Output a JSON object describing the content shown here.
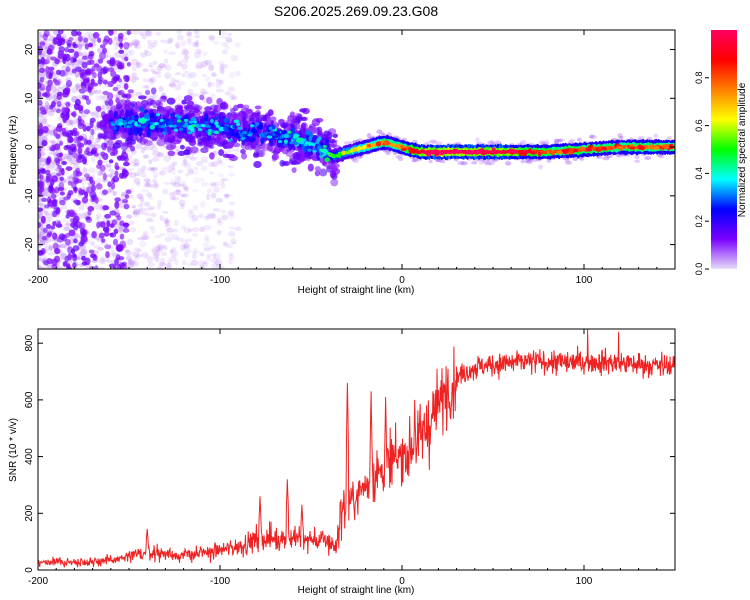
{
  "title": "S206.2025.269.09.23.G08",
  "chart_data": [
    {
      "type": "heatmap",
      "xlabel": "Height of straight line (km)",
      "ylabel": "Frequency (Hz)",
      "xlim": [
        -200,
        150
      ],
      "ylim": [
        -25,
        24
      ],
      "xticks": [
        -200,
        -100,
        0,
        100
      ],
      "xtick_labels": [
        "-200",
        "-100",
        "0",
        "100"
      ],
      "yticks": [
        -20,
        -10,
        0,
        10,
        20
      ],
      "ytick_labels": [
        "-20",
        "-10",
        "0",
        "10",
        "20"
      ],
      "colorbar": {
        "label": "Normalized spectral amplitude",
        "range": [
          0,
          1
        ],
        "ticks": [
          0.0,
          0.2,
          0.4,
          0.6,
          0.8
        ],
        "tick_labels": [
          "0.0",
          "0.2",
          "0.4",
          "0.6",
          "0.8"
        ],
        "colors": [
          "#e6ddf8",
          "#7a00ff",
          "#0000ff",
          "#00ffff",
          "#00ff00",
          "#ffff00",
          "#ff8000",
          "#ff0000",
          "#ff0060"
        ]
      },
      "ridge": {
        "x": [
          -160,
          -140,
          -120,
          -100,
          -80,
          -60,
          -45,
          -38,
          -30,
          -20,
          -10,
          0,
          10,
          20,
          40,
          60,
          80,
          100,
          120,
          150
        ],
        "freq": [
          5,
          5,
          4.5,
          4,
          3,
          2,
          0,
          -2,
          -1,
          0,
          1,
          0,
          -1,
          -1,
          -1,
          -1,
          -1,
          -0.5,
          0,
          0
        ],
        "amplitude": [
          0.2,
          0.25,
          0.25,
          0.25,
          0.2,
          0.25,
          0.3,
          0.4,
          0.5,
          0.6,
          0.7,
          0.7,
          0.9,
          0.95,
          0.95,
          0.9,
          0.75,
          0.75,
          0.75,
          0.7
        ]
      }
    },
    {
      "type": "line",
      "xlabel": "Height of straight line (km)",
      "ylabel": "SNR (10 * v/v)",
      "xlim": [
        -200,
        150
      ],
      "ylim": [
        0,
        850
      ],
      "xticks": [
        -200,
        -100,
        0,
        100
      ],
      "xtick_labels": [
        "-200",
        "-100",
        "0",
        "100"
      ],
      "yticks": [
        0,
        200,
        400,
        600,
        800
      ],
      "ytick_labels": [
        "0",
        "200",
        "400",
        "600",
        "800"
      ],
      "color": "#ee2222",
      "series": [
        {
          "name": "SNR",
          "x": [
            -200,
            -180,
            -160,
            -150,
            -140,
            -130,
            -120,
            -110,
            -100,
            -90,
            -80,
            -70,
            -60,
            -50,
            -40,
            -36,
            -34,
            -30,
            -25,
            -20,
            -15,
            -10,
            -5,
            0,
            5,
            10,
            15,
            20,
            25,
            30,
            35,
            40,
            50,
            60,
            70,
            80,
            90,
            100,
            110,
            120,
            130,
            140,
            150
          ],
          "values": [
            20,
            20,
            25,
            35,
            50,
            45,
            40,
            45,
            55,
            65,
            85,
            90,
            90,
            85,
            80,
            60,
            200,
            230,
            260,
            300,
            330,
            360,
            380,
            400,
            430,
            460,
            520,
            580,
            640,
            680,
            700,
            715,
            725,
            730,
            735,
            735,
            730,
            735,
            735,
            730,
            725,
            720,
            720
          ],
          "spikes": [
            {
              "x": -140,
              "value": 145
            },
            {
              "x": -78,
              "value": 260
            },
            {
              "x": -63,
              "value": 320
            },
            {
              "x": -55,
              "value": 230
            },
            {
              "x": -30,
              "value": 660
            },
            {
              "x": -17,
              "value": 630
            },
            {
              "x": -9,
              "value": 610
            },
            {
              "x": 7,
              "value": 600
            },
            {
              "x": 102,
              "value": 850
            },
            {
              "x": 119,
              "value": 840
            }
          ]
        }
      ]
    }
  ]
}
